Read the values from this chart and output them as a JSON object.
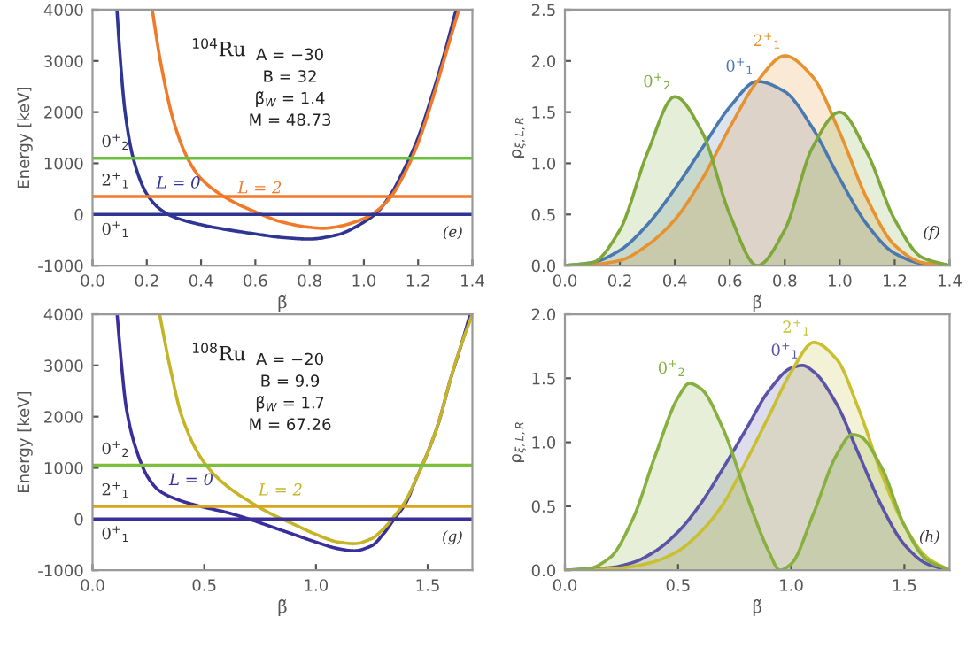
{
  "chart_data": [
    {
      "type": "line",
      "xlabel": "β̃",
      "ylabel": "Energy [keV]",
      "xlim": [
        0,
        1.4
      ],
      "xticks": [
        {
          "value": 0,
          "label": "0.0"
        },
        {
          "value": 0.2,
          "label": "0.2"
        },
        {
          "value": 0.4,
          "label": "0.4"
        },
        {
          "value": 0.6,
          "label": "0.6"
        },
        {
          "value": 0.8,
          "label": "0.8"
        },
        {
          "value": 1.0,
          "label": "1.0"
        },
        {
          "value": 1.2,
          "label": "1.2"
        },
        {
          "value": 1.4,
          "label": "1.4"
        }
      ],
      "ylim": [
        -1000,
        4000
      ],
      "yticks": [
        -1000,
        0,
        1000,
        2000,
        3000,
        4000
      ],
      "series": [
        {
          "name": "L = 0",
          "color": "#2e3592",
          "x": [
            0.09,
            0.1,
            0.12,
            0.15,
            0.2,
            0.25,
            0.3,
            0.4,
            0.5,
            0.6,
            0.7,
            0.8,
            0.9,
            1.0,
            1.05,
            1.1,
            1.15,
            1.2,
            1.25,
            1.3,
            1.34
          ],
          "values": [
            4000,
            3200,
            2000,
            1100,
            400,
            100,
            -50,
            -200,
            -300,
            -380,
            -450,
            -480,
            -400,
            -150,
            50,
            400,
            900,
            1500,
            2300,
            3200,
            4000
          ]
        },
        {
          "name": "L = 2",
          "color": "#f07a2a",
          "x": [
            0.22,
            0.25,
            0.3,
            0.35,
            0.4,
            0.5,
            0.6,
            0.7,
            0.8,
            0.85,
            0.9,
            1.0,
            1.05,
            1.1,
            1.15,
            1.2,
            1.25,
            1.3,
            1.35
          ],
          "values": [
            4000,
            3000,
            1800,
            1100,
            700,
            300,
            50,
            -150,
            -250,
            -270,
            -240,
            -80,
            80,
            350,
            800,
            1400,
            2200,
            3100,
            4000
          ]
        }
      ],
      "ref_lines": [
        {
          "axis": "y",
          "value": 0,
          "color": "#2e3592"
        },
        {
          "axis": "y",
          "value": 350,
          "color": "#f07a2a"
        },
        {
          "axis": "y",
          "value": 1100,
          "color": "#6cbf3a"
        }
      ],
      "annotations": [
        "$^{104}$Ru",
        "A = −30",
        "B = 32",
        "β̃$_{W}$ = 1.4",
        "M = 48.73",
        "(e)",
        {
          "text": "0$^{+}$$_{1}$",
          "y": 0
        },
        {
          "text": "2$^{+}$$_{1}$",
          "y": 350
        },
        {
          "text": "0$^{+}$$_{2}$",
          "y": 1100
        }
      ]
    },
    {
      "type": "area",
      "xlabel": "β̃",
      "ylabel": "ρ$_{ξ,L,R}$",
      "xlim": [
        0,
        1.4
      ],
      "xticks": [
        {
          "value": 0,
          "label": "0.0"
        },
        {
          "value": 0.2,
          "label": "0.2"
        },
        {
          "value": 0.4,
          "label": "0.4"
        },
        {
          "value": 0.6,
          "label": "0.6"
        },
        {
          "value": 0.8,
          "label": "0.8"
        },
        {
          "value": 1.0,
          "label": "1.0"
        },
        {
          "value": 1.2,
          "label": "1.2"
        },
        {
          "value": 1.4,
          "label": "1.4"
        }
      ],
      "ylim": [
        0,
        2.5
      ],
      "yticks": [
        {
          "value": 0,
          "label": "0.0"
        },
        {
          "value": 0.5,
          "label": "0.5"
        },
        {
          "value": 1.0,
          "label": "1.0"
        },
        {
          "value": 1.5,
          "label": "1.5"
        },
        {
          "value": 2.0,
          "label": "2.0"
        },
        {
          "value": 2.5,
          "label": "2.5"
        }
      ],
      "series": [
        {
          "name": "0$^{+}$$_{1}$",
          "color": "#4a78b0",
          "x": [
            0,
            0.1,
            0.2,
            0.3,
            0.4,
            0.5,
            0.6,
            0.7,
            0.8,
            0.9,
            1.0,
            1.1,
            1.2,
            1.3,
            1.4
          ],
          "values": [
            0,
            0.03,
            0.15,
            0.4,
            0.75,
            1.15,
            1.55,
            1.8,
            1.7,
            1.35,
            0.85,
            0.4,
            0.12,
            0.02,
            0
          ]
        },
        {
          "name": "2$^{+}$$_{1}$",
          "color": "#e8912f",
          "x": [
            0,
            0.1,
            0.2,
            0.3,
            0.4,
            0.5,
            0.6,
            0.7,
            0.8,
            0.9,
            1.0,
            1.1,
            1.2,
            1.3,
            1.4
          ],
          "values": [
            0,
            0.01,
            0.05,
            0.2,
            0.45,
            0.85,
            1.35,
            1.8,
            2.05,
            1.85,
            1.3,
            0.65,
            0.2,
            0.03,
            0
          ]
        },
        {
          "name": "0$^{+}$$_{2}$",
          "color": "#7ea83a",
          "x": [
            0,
            0.1,
            0.2,
            0.3,
            0.4,
            0.5,
            0.6,
            0.7,
            0.8,
            0.9,
            1.0,
            1.1,
            1.2,
            1.3,
            1.4
          ],
          "values": [
            0,
            0.03,
            0.35,
            1.1,
            1.65,
            1.3,
            0.5,
            0,
            0.35,
            1.15,
            1.5,
            1.1,
            0.45,
            0.08,
            0
          ]
        }
      ],
      "annotations": [
        "(f)"
      ]
    },
    {
      "type": "line",
      "xlabel": "β̃",
      "ylabel": "Energy [keV]",
      "xlim": [
        0,
        1.7
      ],
      "xticks": [
        {
          "value": 0,
          "label": "0.0"
        },
        {
          "value": 0.5,
          "label": "0.5"
        },
        {
          "value": 1.0,
          "label": "1.0"
        },
        {
          "value": 1.5,
          "label": "1.5"
        }
      ],
      "ylim": [
        -1000,
        4000
      ],
      "yticks": [
        -1000,
        0,
        1000,
        2000,
        3000,
        4000
      ],
      "series": [
        {
          "name": "L = 0",
          "color": "#3a2f9a",
          "x": [
            0.11,
            0.13,
            0.15,
            0.2,
            0.25,
            0.3,
            0.4,
            0.5,
            0.6,
            0.7,
            0.8,
            0.9,
            1.0,
            1.1,
            1.17,
            1.25,
            1.3,
            1.35,
            1.4,
            1.45,
            1.5,
            1.55,
            1.6,
            1.65,
            1.69
          ],
          "values": [
            4000,
            3000,
            2200,
            1300,
            800,
            550,
            350,
            230,
            130,
            0,
            -150,
            -300,
            -450,
            -580,
            -620,
            -520,
            -300,
            0,
            300,
            800,
            1300,
            1900,
            2700,
            3400,
            4000
          ]
        },
        {
          "name": "L = 2",
          "color": "#c6b427",
          "x": [
            0.3,
            0.35,
            0.4,
            0.5,
            0.6,
            0.7,
            0.8,
            0.9,
            1.0,
            1.1,
            1.17,
            1.25,
            1.3,
            1.35,
            1.4,
            1.45,
            1.5,
            1.55,
            1.6,
            1.65,
            1.7
          ],
          "values": [
            4000,
            2900,
            2000,
            1100,
            650,
            350,
            100,
            -100,
            -300,
            -450,
            -480,
            -380,
            -200,
            50,
            350,
            800,
            1300,
            1900,
            2700,
            3400,
            4000
          ]
        }
      ],
      "ref_lines": [
        {
          "axis": "y",
          "value": 0,
          "color": "#3a2f9a"
        },
        {
          "axis": "y",
          "value": 250,
          "color": "#d9a520"
        },
        {
          "axis": "y",
          "value": 1050,
          "color": "#7cbf3a"
        }
      ],
      "annotations": [
        "$^{108}$Ru",
        "A = −20",
        "B = 9.9",
        "β̃$_{W}$ = 1.7",
        "M = 67.26",
        "(g)",
        {
          "text": "0$^{+}$$_{1}$",
          "y": 0
        },
        {
          "text": "2$^{+}$$_{1}$",
          "y": 250
        },
        {
          "text": "0$^{+}$$_{2}$",
          "y": 1050
        }
      ]
    },
    {
      "type": "area",
      "xlabel": "β̃",
      "ylabel": "ρ$_{ξ,L,R}$",
      "xlim": [
        0,
        1.7
      ],
      "xticks": [
        {
          "value": 0,
          "label": "0.0"
        },
        {
          "value": 0.5,
          "label": "0.5"
        },
        {
          "value": 1.0,
          "label": "1.0"
        },
        {
          "value": 1.5,
          "label": "1.5"
        }
      ],
      "ylim": [
        0,
        2
      ],
      "yticks": [
        {
          "value": 0,
          "label": "0.0"
        },
        {
          "value": 0.5,
          "label": "0.5"
        },
        {
          "value": 1.0,
          "label": "1.0"
        },
        {
          "value": 1.5,
          "label": "1.5"
        },
        {
          "value": 2.0,
          "label": "2.0"
        }
      ],
      "series": [
        {
          "name": "0$^{+}$$_{1}$",
          "color": "#5b53a8",
          "x": [
            0,
            0.1,
            0.2,
            0.3,
            0.4,
            0.5,
            0.6,
            0.7,
            0.8,
            0.9,
            1.0,
            1.05,
            1.1,
            1.2,
            1.3,
            1.4,
            1.5,
            1.6,
            1.7
          ],
          "values": [
            0,
            0.01,
            0.02,
            0.06,
            0.15,
            0.3,
            0.52,
            0.8,
            1.1,
            1.4,
            1.58,
            1.6,
            1.55,
            1.3,
            0.9,
            0.5,
            0.2,
            0.05,
            0
          ]
        },
        {
          "name": "2$^{+}$$_{1}$",
          "color": "#c8c030",
          "x": [
            0,
            0.2,
            0.3,
            0.4,
            0.5,
            0.6,
            0.7,
            0.8,
            0.9,
            1.0,
            1.1,
            1.2,
            1.3,
            1.4,
            1.5,
            1.6,
            1.7
          ],
          "values": [
            0,
            0.01,
            0.03,
            0.07,
            0.15,
            0.3,
            0.52,
            0.85,
            1.2,
            1.55,
            1.78,
            1.65,
            1.25,
            0.75,
            0.35,
            0.1,
            0
          ]
        },
        {
          "name": "0$^{+}$$_{2}$",
          "color": "#88b040",
          "x": [
            0,
            0.1,
            0.2,
            0.3,
            0.4,
            0.5,
            0.55,
            0.6,
            0.7,
            0.8,
            0.9,
            0.95,
            1.0,
            1.1,
            1.2,
            1.27,
            1.3,
            1.4,
            1.5,
            1.6,
            1.7
          ],
          "values": [
            0,
            0.01,
            0.1,
            0.4,
            0.9,
            1.35,
            1.46,
            1.42,
            1.1,
            0.6,
            0.15,
            0,
            0.05,
            0.45,
            0.9,
            1.06,
            1.05,
            0.8,
            0.35,
            0.08,
            0
          ]
        }
      ],
      "annotations": [
        "(h)"
      ]
    }
  ]
}
